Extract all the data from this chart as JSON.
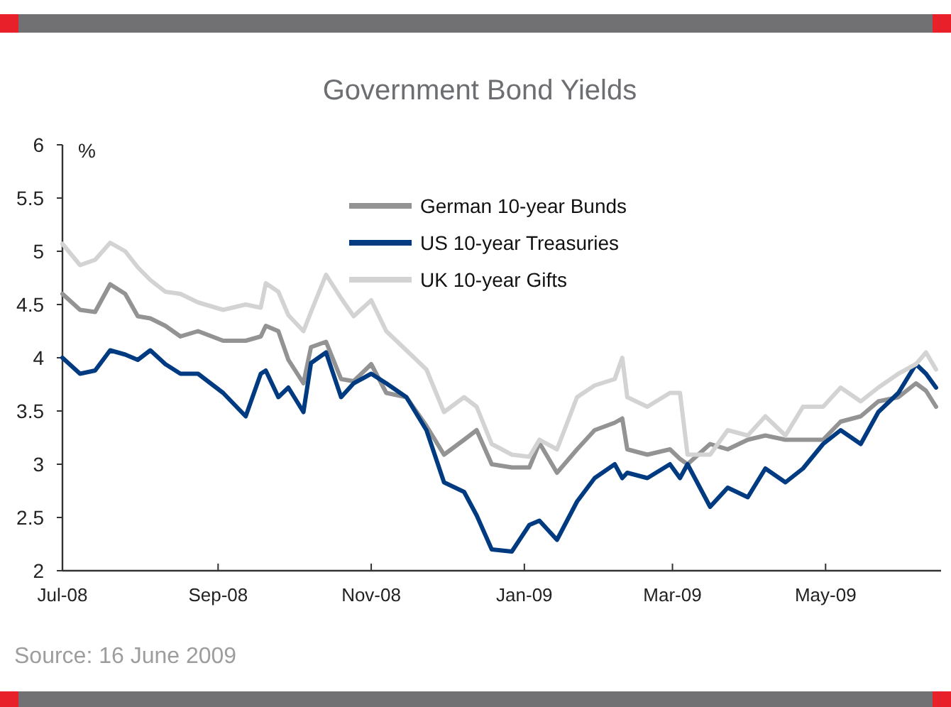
{
  "chart_data": {
    "type": "line",
    "title": "Government Bond Yields",
    "ylabel": "%",
    "x": [
      "2008-07-01",
      "2008-07-08",
      "2008-07-14",
      "2008-07-20",
      "2008-07-26",
      "2008-07-31",
      "2008-08-05",
      "2008-08-11",
      "2008-08-17",
      "2008-08-24",
      "2008-09-03",
      "2008-09-12",
      "2008-09-18",
      "2008-09-20",
      "2008-09-25",
      "2008-09-29",
      "2008-10-05",
      "2008-10-08",
      "2008-10-14",
      "2008-10-20",
      "2008-10-25",
      "2008-11-01",
      "2008-11-07",
      "2008-11-15",
      "2008-11-23",
      "2008-11-30",
      "2008-12-08",
      "2008-12-13",
      "2008-12-19",
      "2008-12-27",
      "2009-01-03",
      "2009-01-07",
      "2009-01-14",
      "2009-01-22",
      "2009-01-29",
      "2009-02-06",
      "2009-02-09",
      "2009-02-11",
      "2009-02-19",
      "2009-02-28",
      "2009-03-04",
      "2009-03-07",
      "2009-03-16",
      "2009-03-23",
      "2009-03-31",
      "2009-04-07",
      "2009-04-15",
      "2009-04-22",
      "2009-04-30",
      "2009-05-07",
      "2009-05-15",
      "2009-05-22",
      "2009-05-30",
      "2009-06-06",
      "2009-06-10",
      "2009-06-14"
    ],
    "series": [
      {
        "name": "German 10-year Bunds",
        "color": "#939393",
        "values": [
          4.6,
          4.45,
          4.43,
          4.69,
          4.6,
          4.39,
          4.37,
          4.3,
          4.2,
          4.25,
          4.16,
          4.16,
          4.2,
          4.3,
          4.25,
          3.98,
          3.76,
          4.1,
          4.15,
          3.8,
          3.78,
          3.94,
          3.67,
          3.63,
          3.36,
          3.09,
          3.23,
          3.32,
          3.0,
          2.97,
          2.97,
          3.2,
          2.92,
          3.14,
          3.32,
          3.39,
          3.43,
          3.14,
          3.09,
          3.14,
          3.05,
          3.0,
          3.19,
          3.14,
          3.23,
          3.27,
          3.23,
          3.23,
          3.23,
          3.4,
          3.45,
          3.59,
          3.63,
          3.76,
          3.69,
          3.54
        ]
      },
      {
        "name": "US 10-year Treasuries",
        "color": "#003a80",
        "values": [
          4.0,
          3.85,
          3.88,
          4.07,
          4.03,
          3.98,
          4.07,
          3.94,
          3.85,
          3.85,
          3.67,
          3.45,
          3.85,
          3.88,
          3.63,
          3.72,
          3.49,
          3.95,
          4.05,
          3.63,
          3.76,
          3.85,
          3.76,
          3.63,
          3.32,
          2.83,
          2.74,
          2.52,
          2.2,
          2.18,
          2.43,
          2.47,
          2.29,
          2.65,
          2.87,
          3.0,
          2.87,
          2.92,
          2.87,
          3.0,
          2.87,
          3.0,
          2.6,
          2.78,
          2.69,
          2.96,
          2.83,
          2.96,
          3.19,
          3.32,
          3.19,
          3.49,
          3.67,
          3.94,
          3.85,
          3.72
        ]
      },
      {
        "name": "UK 10-year Gifts",
        "color": "#d3d3d3",
        "values": [
          5.07,
          4.87,
          4.92,
          5.08,
          5.0,
          4.85,
          4.73,
          4.62,
          4.6,
          4.52,
          4.45,
          4.5,
          4.47,
          4.7,
          4.62,
          4.4,
          4.25,
          4.43,
          4.78,
          4.56,
          4.39,
          4.54,
          4.25,
          4.07,
          3.89,
          3.49,
          3.63,
          3.54,
          3.19,
          3.09,
          3.07,
          3.23,
          3.14,
          3.63,
          3.74,
          3.8,
          4.0,
          3.63,
          3.54,
          3.67,
          3.67,
          3.09,
          3.09,
          3.32,
          3.27,
          3.45,
          3.27,
          3.54,
          3.54,
          3.72,
          3.59,
          3.72,
          3.85,
          3.94,
          4.05,
          3.89
        ]
      }
    ],
    "xlim": [
      "2008-07-01",
      "2009-06-16"
    ],
    "xticks": [
      {
        "value": "2008-07-01",
        "label": "Jul-08"
      },
      {
        "value": "2008-09-01",
        "label": "Sep-08"
      },
      {
        "value": "2008-11-01",
        "label": "Nov-08"
      },
      {
        "value": "2009-01-01",
        "label": "Jan-09"
      },
      {
        "value": "2009-03-01",
        "label": "Mar-09"
      },
      {
        "value": "2009-05-01",
        "label": "May-09"
      }
    ],
    "ylim": [
      2,
      6
    ],
    "yticks": [
      2,
      2.5,
      3,
      3.5,
      4,
      4.5,
      5,
      5.5,
      6
    ],
    "legend": "top",
    "grid": false,
    "marker": "none",
    "line_style": "solid",
    "annotations": [
      "Source: 16 June 2009"
    ]
  }
}
